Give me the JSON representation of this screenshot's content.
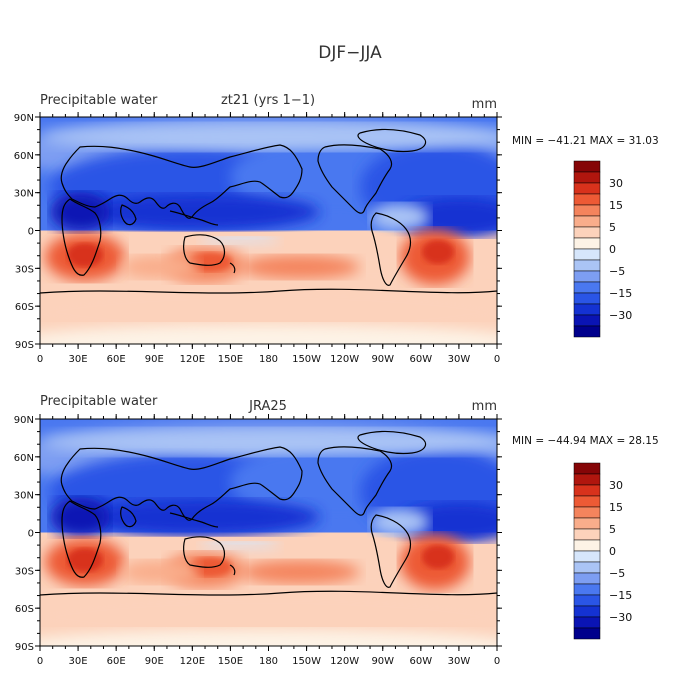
{
  "figure_title": "DJF−JJA",
  "colors": {
    "ocean_base": "#b9cff5",
    "levels": [
      "#00008c",
      "#0a14b4",
      "#1432d2",
      "#2a55e6",
      "#4a78f0",
      "#7d9ef2",
      "#aac4f5",
      "#d6e6fb",
      "#fdf3e6",
      "#fcd2bb",
      "#f9ad8b",
      "#f4845d",
      "#ed5a35",
      "#d8321c",
      "#b0160e",
      "#850507"
    ]
  },
  "colorbar": {
    "labels": [
      "30",
      "15",
      "5",
      "0",
      "−5",
      "−15",
      "−30"
    ]
  },
  "chart_data": [
    {
      "type": "heatmap",
      "subtitle_left": "Precipitable water",
      "subtitle_center": "zt21 (yrs 1−1)",
      "units": "mm",
      "stats_label": "MIN = −41.21 MAX =  31.03",
      "min": -41.21,
      "max": 31.03,
      "x_ticks": [
        "0",
        "30E",
        "60E",
        "90E",
        "120E",
        "150E",
        "180",
        "150W",
        "120W",
        "90W",
        "60W",
        "30W",
        "0"
      ],
      "y_ticks": [
        "90N",
        "60N",
        "30N",
        "0",
        "30S",
        "60S",
        "90S"
      ],
      "xlim": [
        0,
        360
      ],
      "ylim": [
        -90,
        90
      ],
      "contour_levels": [
        -30,
        -15,
        -5,
        0,
        5,
        15,
        30
      ]
    },
    {
      "type": "heatmap",
      "subtitle_left": "Precipitable water",
      "subtitle_center": "JRA25",
      "units": "mm",
      "stats_label": "MIN = −44.94 MAX =  28.15",
      "min": -44.94,
      "max": 28.15,
      "x_ticks": [
        "0",
        "30E",
        "60E",
        "90E",
        "120E",
        "150E",
        "180",
        "150W",
        "120W",
        "90W",
        "60W",
        "30W",
        "0"
      ],
      "y_ticks": [
        "90N",
        "60N",
        "30N",
        "0",
        "30S",
        "60S",
        "90S"
      ],
      "xlim": [
        0,
        360
      ],
      "ylim": [
        -90,
        90
      ],
      "contour_levels": [
        -30,
        -15,
        -5,
        0,
        5,
        15,
        30
      ]
    }
  ]
}
